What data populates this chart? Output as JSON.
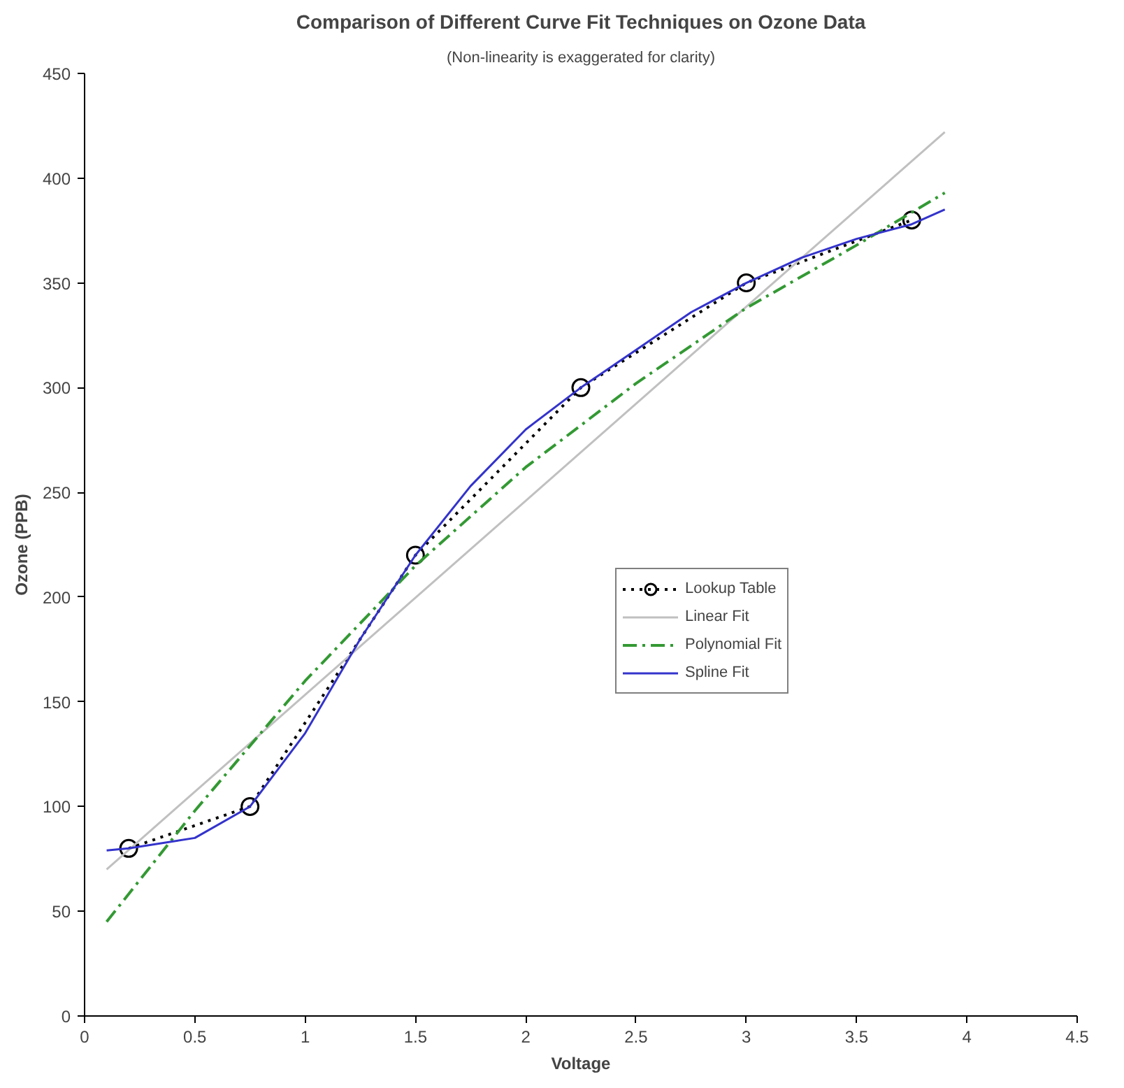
{
  "chart_data": {
    "type": "line",
    "title": "Comparison of Different Curve Fit Techniques on Ozone Data",
    "subtitle": "(Non-linearity is exaggerated for clarity)",
    "xlabel": "Voltage",
    "ylabel": "Ozone (PPB)",
    "xlim": [
      0,
      4.5
    ],
    "ylim": [
      0,
      450
    ],
    "xticks": [
      0,
      0.5,
      1,
      1.5,
      2,
      2.5,
      3,
      3.5,
      4,
      4.5
    ],
    "yticks": [
      0,
      50,
      100,
      150,
      200,
      250,
      300,
      350,
      400,
      450
    ],
    "grid": false,
    "legend": "center",
    "series": [
      {
        "name": "Lookup Table",
        "color": "#000000",
        "marker": "circle",
        "line_style": "dotted",
        "x": [
          0.2,
          0.75,
          1.5,
          2.25,
          3,
          3.75
        ],
        "values": [
          80,
          100,
          220,
          300,
          350,
          380
        ]
      },
      {
        "name": "Linear Fit",
        "color": "#c0c0c0",
        "marker": "none",
        "line_style": "solid",
        "x": [
          0.1,
          3.9
        ],
        "values": [
          70,
          422
        ]
      },
      {
        "name": "Polynomial Fit",
        "color": "#339933",
        "marker": "none",
        "line_style": "dashed",
        "x": [
          0.1,
          0.5,
          1,
          1.5,
          2,
          2.5,
          3,
          3.5,
          3.9
        ],
        "values": [
          45,
          98,
          160,
          215,
          262,
          302,
          338,
          368,
          393
        ]
      },
      {
        "name": "Spline Fit",
        "color": "#3333cc",
        "marker": "none",
        "line_style": "solid",
        "x": [
          0.1,
          0.2,
          0.5,
          0.75,
          1,
          1.25,
          1.5,
          1.75,
          2,
          2.25,
          2.5,
          2.75,
          3,
          3.25,
          3.5,
          3.75,
          3.9
        ],
        "values": [
          79,
          80,
          85,
          100,
          135,
          180,
          220,
          253,
          280,
          300,
          318,
          336,
          350,
          362,
          371,
          378,
          385
        ]
      }
    ]
  }
}
